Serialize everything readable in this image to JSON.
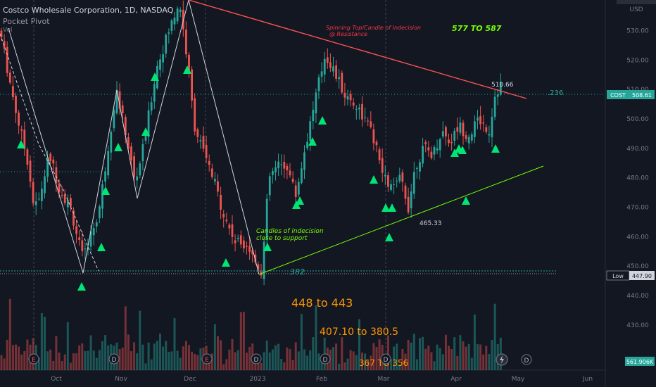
{
  "header": {
    "symbol_title": "Costco Wholesale Corporation, 1D, NASDAQ",
    "indicator": "Pocket Pivot",
    "sub": "Vol"
  },
  "chart_data": {
    "type": "candlestick",
    "currency": "USD",
    "y_axis": {
      "ticks": [
        530,
        520,
        510,
        500,
        490,
        480,
        470,
        460,
        450,
        440,
        430
      ],
      "range": [
        423,
        543
      ]
    },
    "x_axis": {
      "ticks": [
        "Oct",
        "Nov",
        "Dec",
        "2023",
        "Feb",
        "Mar",
        "Apr",
        "May",
        "Jun"
      ]
    },
    "price_labels": [
      {
        "label": "COST",
        "value": "508.61",
        "price": 508.61,
        "color": "#26a69a"
      },
      {
        "label": "Low",
        "value": "447.90",
        "price": 447.9,
        "color": "#d1d4dc"
      },
      {
        "label": "",
        "value": "561.906K",
        "price": 425,
        "color": "#26a69a"
      }
    ],
    "annotations": [
      {
        "text": "Spinning Top/Candle of Indecision",
        "color": "#f23645"
      },
      {
        "text": "@ Resistance",
        "color": "#f23645"
      },
      {
        "text": "577 TO 587",
        "color": "#76ff03"
      },
      {
        "text": "510.66",
        "color": "#d1d4dc"
      },
      {
        "text": ".236",
        "color": "#26a69a"
      },
      {
        "text": "Candles of indecision",
        "color": "#76ff03"
      },
      {
        "text": "close to support",
        "color": "#76ff03"
      },
      {
        "text": "465.33",
        "color": "#d1d4dc"
      },
      {
        "text": "382",
        "color": "#26a69a"
      },
      {
        "text": "448 to 443",
        "color": "#ff9800"
      },
      {
        "text": "407.10 to  380.5",
        "color": "#ff9800"
      },
      {
        "text": "367 TO 356",
        "color": "#ff9800"
      }
    ],
    "event_markers": [
      "E",
      "D",
      "E",
      "D",
      "D",
      "D"
    ],
    "signal_markers": 30,
    "colors": {
      "up": "#26a69a",
      "down": "#ef5350",
      "resistance": "#ff5252",
      "support": "#76ff03",
      "fib": "#26a69a",
      "zigzag": "#d1d4dc",
      "bg": "#131722"
    }
  }
}
